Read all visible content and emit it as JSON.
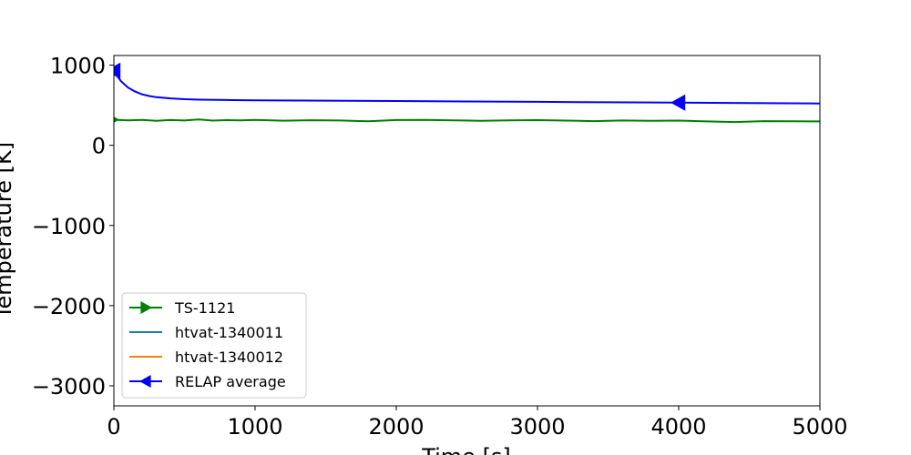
{
  "chart_data": {
    "type": "line",
    "title": "",
    "xlabel": "Time [s]",
    "ylabel": "Temperature [K]",
    "xlim": [
      0,
      5000
    ],
    "ylim": [
      -3250,
      1120
    ],
    "xticks": [
      0,
      1000,
      2000,
      3000,
      4000,
      5000
    ],
    "yticks": [
      -3000,
      -2000,
      -1000,
      0,
      1000
    ],
    "xtick_labels": [
      "0",
      "1000",
      "2000",
      "3000",
      "4000",
      "5000"
    ],
    "ytick_labels": [
      "−3000",
      "−2000",
      "−1000",
      "0",
      "1000"
    ],
    "grid": false,
    "legend_position": "lower-left",
    "series": [
      {
        "name": "TS-1121",
        "color": "#008000",
        "marker": "triangle-right",
        "x": [
          0,
          100,
          200,
          300,
          400,
          500,
          600,
          700,
          800,
          900,
          1000,
          1200,
          1400,
          1600,
          1800,
          2000,
          2200,
          2400,
          2600,
          2800,
          3000,
          3200,
          3400,
          3600,
          3800,
          4000,
          4200,
          4400,
          4600,
          4800,
          5000
        ],
        "y": [
          320,
          312,
          318,
          305,
          315,
          310,
          322,
          308,
          314,
          311,
          316,
          307,
          313,
          309,
          300,
          315,
          318,
          312,
          306,
          311,
          314,
          308,
          302,
          310,
          305,
          308,
          298,
          290,
          302,
          300,
          298
        ]
      },
      {
        "name": "htvat-1340011",
        "color": "#1f77b4",
        "marker": "none",
        "x": [],
        "y": []
      },
      {
        "name": "htvat-1340012",
        "color": "#ff7f0e",
        "marker": "none",
        "x": [],
        "y": []
      },
      {
        "name": "RELAP average",
        "color": "#0000ff",
        "marker": "triangle-left",
        "x": [
          0,
          25,
          50,
          100,
          150,
          200,
          250,
          300,
          400,
          500,
          600,
          800,
          1000,
          1500,
          2000,
          2500,
          3000,
          3500,
          4000,
          4500,
          5000
        ],
        "y": [
          930,
          860,
          800,
          720,
          670,
          635,
          615,
          600,
          585,
          575,
          570,
          565,
          562,
          557,
          552,
          547,
          542,
          537,
          532,
          527,
          522
        ]
      }
    ]
  }
}
